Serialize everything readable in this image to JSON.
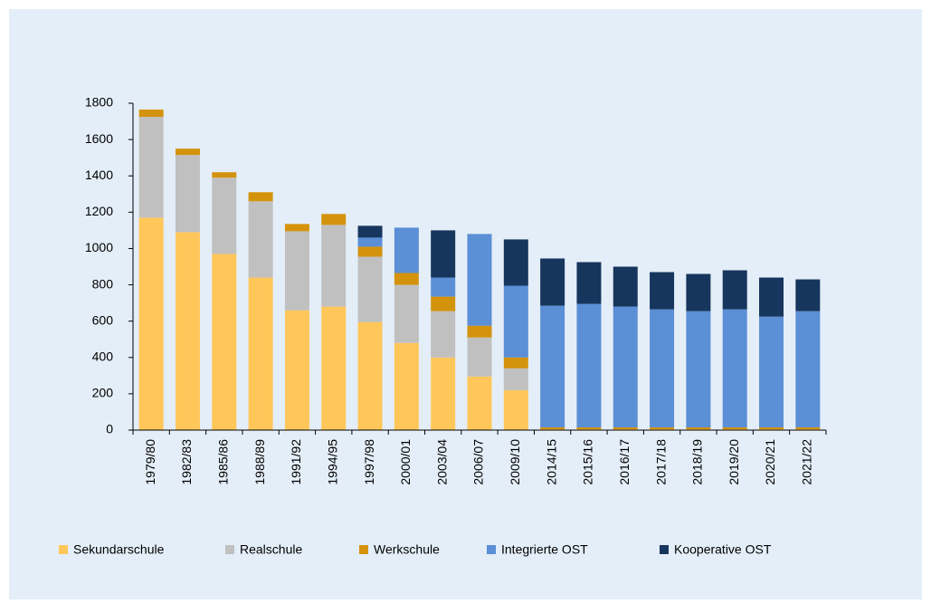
{
  "chart_data": {
    "type": "stacked_bar",
    "categories": [
      "1979/80",
      "1982/83",
      "1985/86",
      "1988/89",
      "1991/92",
      "1994/95",
      "1997/98",
      "2000/01",
      "2003/04",
      "2006/07",
      "2009/10",
      "2014/15",
      "2015/16",
      "2016/17",
      "2017/18",
      "2018/19",
      "2019/20",
      "2020/21",
      "2021/22"
    ],
    "series": [
      {
        "name": "Sekundarschule",
        "color": "#ffc75a",
        "values": [
          1170,
          1090,
          970,
          840,
          660,
          680,
          595,
          480,
          400,
          295,
          220,
          5,
          5,
          5,
          5,
          5,
          5,
          5,
          5
        ]
      },
      {
        "name": "Realschule",
        "color": "#c0c0c0",
        "values": [
          555,
          425,
          420,
          420,
          435,
          450,
          360,
          320,
          255,
          215,
          120,
          0,
          0,
          0,
          0,
          0,
          0,
          0,
          0
        ]
      },
      {
        "name": "Werkschule",
        "color": "#d4930c",
        "values": [
          40,
          35,
          30,
          50,
          40,
          60,
          55,
          65,
          80,
          65,
          60,
          10,
          10,
          10,
          10,
          10,
          10,
          10,
          10
        ]
      },
      {
        "name": "Integrierte OST",
        "color": "#5b8fd6",
        "values": [
          0,
          0,
          0,
          0,
          0,
          0,
          50,
          250,
          105,
          505,
          395,
          670,
          680,
          665,
          650,
          640,
          650,
          610,
          640
        ]
      },
      {
        "name": "Kooperative OST",
        "color": "#17365d",
        "values": [
          0,
          0,
          0,
          0,
          0,
          0,
          65,
          0,
          260,
          0,
          255,
          260,
          230,
          220,
          205,
          205,
          215,
          215,
          175
        ]
      }
    ],
    "ylim": [
      0,
      1800
    ],
    "yticks": [
      0,
      200,
      400,
      600,
      800,
      1000,
      1200,
      1400,
      1600,
      1800
    ],
    "grid": false
  }
}
